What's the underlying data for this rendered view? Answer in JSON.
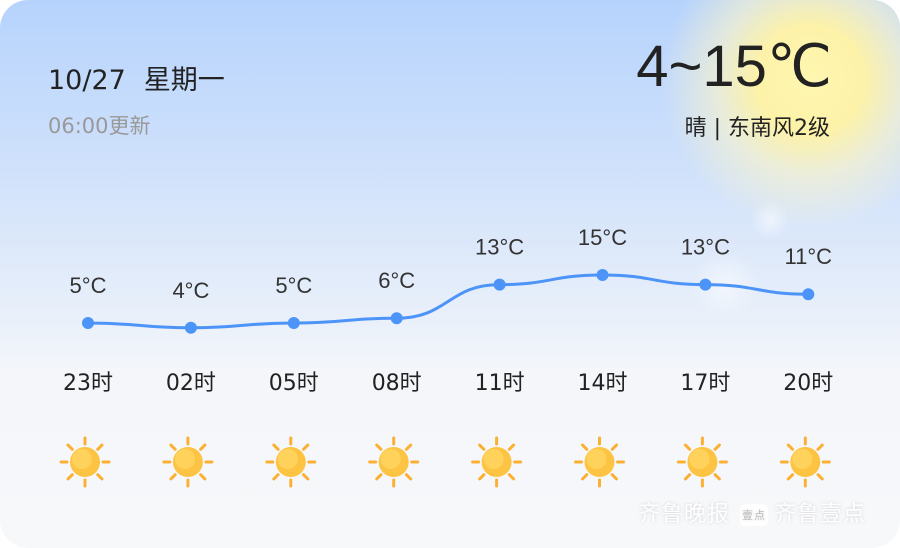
{
  "header": {
    "date": "10/27",
    "weekday": "星期一",
    "updated": "06:00更新",
    "temp_range": "4~15℃",
    "condition": "晴 | 东南风2级"
  },
  "chart_data": {
    "type": "line",
    "categories": [
      "23时",
      "02时",
      "05时",
      "08时",
      "11时",
      "14时",
      "17时",
      "20时"
    ],
    "values": [
      5,
      4,
      5,
      6,
      13,
      15,
      13,
      11
    ],
    "labels": [
      "5°C",
      "4°C",
      "5°C",
      "6°C",
      "13°C",
      "15°C",
      "13°C",
      "11°C"
    ],
    "icons": [
      "sunny-icon",
      "sunny-icon",
      "sunny-icon",
      "sunny-icon",
      "sunny-icon",
      "sunny-icon",
      "sunny-icon",
      "sunny-icon"
    ],
    "line_color": "#4d94f8"
  },
  "watermark": {
    "brand1": "齐鲁晚报",
    "badge": "壹点",
    "brand2": "齐鲁壹点"
  }
}
